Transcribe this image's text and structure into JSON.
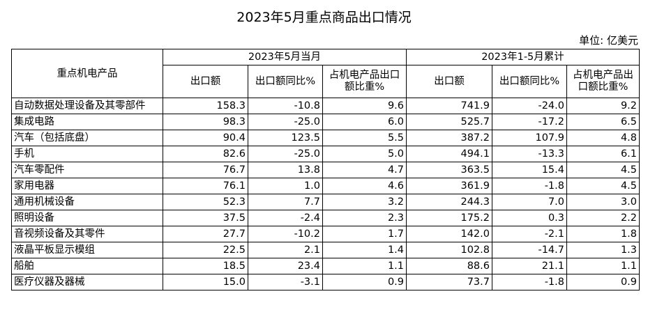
{
  "header": {
    "title": "2023年5月重点商品出口情况",
    "unit": "单位:  亿美元"
  },
  "table": {
    "corner": "重点机电产品",
    "groups": [
      "2023年5月当月",
      "2023年1-5月累计"
    ],
    "subheaders": [
      "出口额",
      "出口额同比%",
      "占机电产品出口额比重%",
      "出口额",
      "出口额同比%",
      "占机电产品出口额比重%"
    ],
    "rows": [
      [
        "自动数据处理设备及其零部件",
        "158.3",
        "-10.8",
        "9.6",
        "741.9",
        "-24.0",
        "9.2"
      ],
      [
        "集成电路",
        "98.3",
        "-25.0",
        "6.0",
        "525.7",
        "-17.2",
        "6.5"
      ],
      [
        "汽车（包括底盘）",
        "90.4",
        "123.5",
        "5.5",
        "387.2",
        "107.9",
        "4.8"
      ],
      [
        "手机",
        "82.6",
        "-25.0",
        "5.0",
        "494.1",
        "-13.3",
        "6.1"
      ],
      [
        "汽车零配件",
        "76.7",
        "13.8",
        "4.7",
        "363.5",
        "15.4",
        "4.5"
      ],
      [
        "家用电器",
        "76.1",
        "1.0",
        "4.6",
        "361.9",
        "-1.8",
        "4.5"
      ],
      [
        "通用机械设备",
        "52.3",
        "7.7",
        "3.2",
        "244.3",
        "7.0",
        "3.0"
      ],
      [
        "照明设备",
        "37.5",
        "-2.4",
        "2.3",
        "175.2",
        "0.3",
        "2.2"
      ],
      [
        "音视频设备及其零件",
        "27.7",
        "-10.2",
        "1.7",
        "142.0",
        "-2.1",
        "1.8"
      ],
      [
        "液晶平板显示模组",
        "22.5",
        "2.1",
        "1.4",
        "102.8",
        "-14.7",
        "1.3"
      ],
      [
        "船舶",
        "18.5",
        "23.4",
        "1.1",
        "88.6",
        "21.1",
        "1.1"
      ],
      [
        "医疗仪器及器械",
        "15.0",
        "-3.1",
        "0.9",
        "73.7",
        "-1.8",
        "0.9"
      ]
    ]
  }
}
